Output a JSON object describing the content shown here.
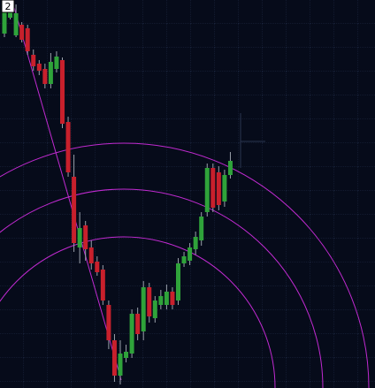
{
  "chart_data": {
    "type": "candlestick",
    "label": "2",
    "open": [
      401,
      419,
      399,
      411,
      407,
      377,
      367,
      361,
      344,
      361,
      371,
      301,
      239,
      159,
      184,
      159,
      143,
      134,
      94,
      54,
      14,
      34,
      39,
      84,
      64,
      114,
      79,
      94,
      94,
      109,
      99,
      141,
      144,
      157,
      167,
      199,
      249,
      244,
      211,
      241
    ],
    "close": [
      427,
      431,
      424,
      394,
      381,
      364,
      359,
      344,
      369,
      375,
      299,
      244,
      164,
      181,
      157,
      141,
      131,
      99,
      54,
      14,
      39,
      41,
      84,
      61,
      114,
      81,
      99,
      104,
      109,
      94,
      141,
      149,
      159,
      171,
      194,
      249,
      204,
      207,
      241,
      257
    ],
    "high": [
      434,
      436,
      434,
      414,
      411,
      383,
      371,
      367,
      379,
      381,
      374,
      307,
      264,
      199,
      189,
      167,
      149,
      139,
      99,
      61,
      54,
      49,
      89,
      91,
      121,
      119,
      104,
      111,
      117,
      114,
      147,
      154,
      164,
      177,
      199,
      254,
      254,
      251,
      247,
      267
    ],
    "low": [
      397,
      417,
      397,
      391,
      377,
      359,
      354,
      339,
      339,
      357,
      294,
      239,
      154,
      141,
      144,
      134,
      127,
      94,
      44,
      7,
      4,
      29,
      34,
      54,
      54,
      74,
      74,
      89,
      89,
      89,
      94,
      137,
      139,
      151,
      161,
      194,
      199,
      201,
      205,
      237
    ],
    "up_color": "#2fa33a",
    "down_color": "#c8202c",
    "wick_color": "#9aa0aa",
    "ylim": [
      0,
      439
    ],
    "background": "#060b1a",
    "grid": true
  }
}
